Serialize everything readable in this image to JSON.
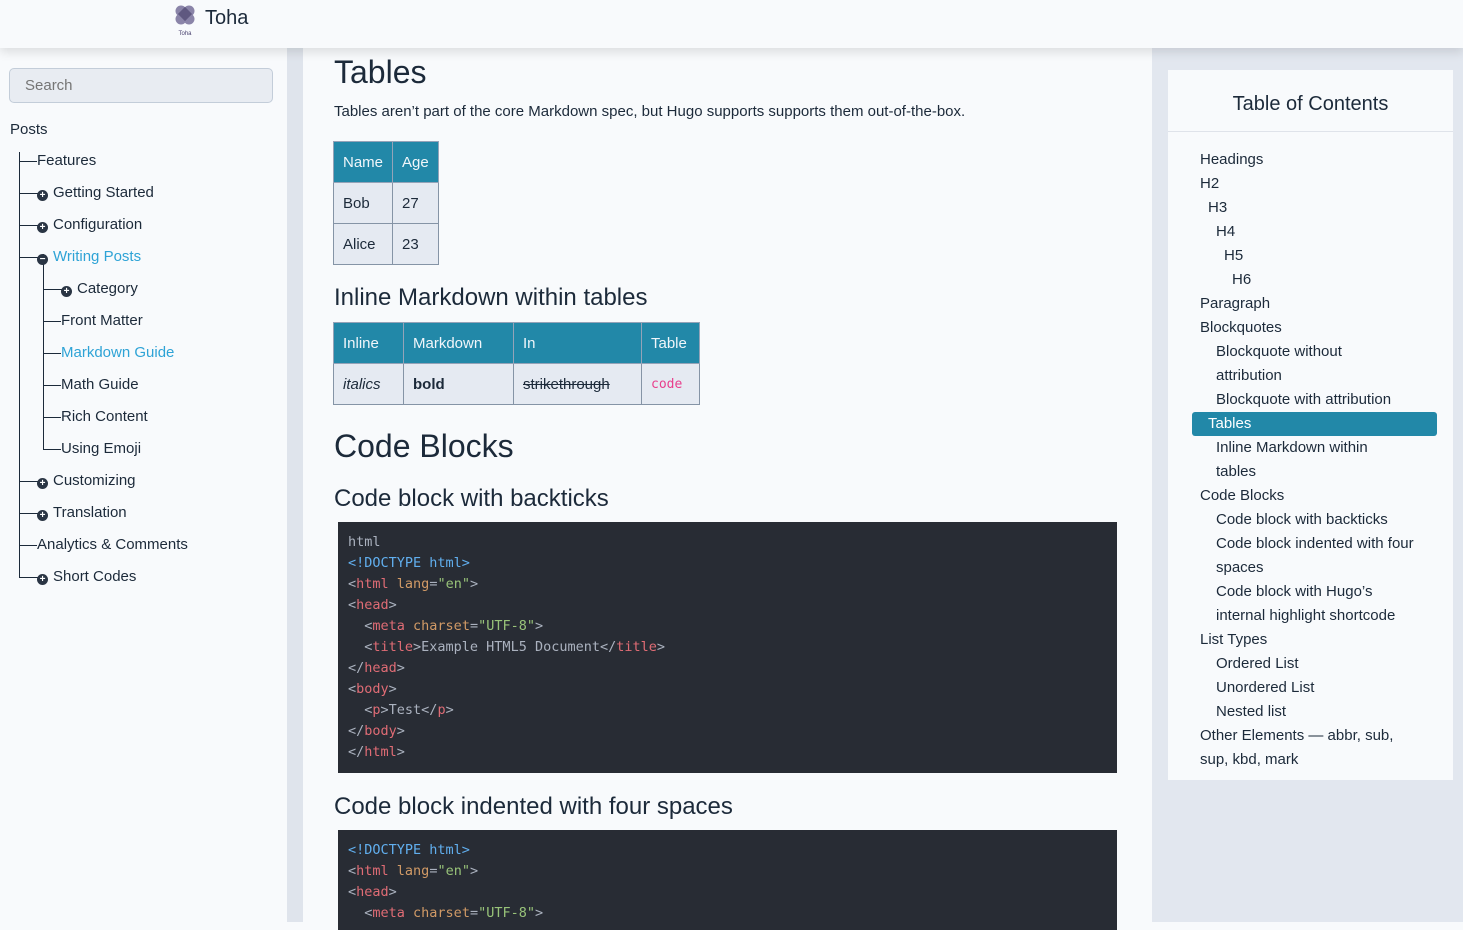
{
  "header": {
    "brand": "Toha",
    "logo_text": "Toha"
  },
  "sidebar": {
    "search_placeholder": "Search",
    "root": "Posts",
    "items": [
      {
        "label": "Features",
        "level": 1,
        "icon": "none"
      },
      {
        "label": "Getting Started",
        "level": 1,
        "icon": "plus"
      },
      {
        "label": "Configuration",
        "level": 1,
        "icon": "plus"
      },
      {
        "label": "Writing Posts",
        "level": 1,
        "icon": "minus",
        "active": true
      },
      {
        "label": "Category",
        "level": 2,
        "icon": "plus"
      },
      {
        "label": "Front Matter",
        "level": 2,
        "icon": "none"
      },
      {
        "label": "Markdown Guide",
        "level": 2,
        "icon": "none",
        "active": true
      },
      {
        "label": "Math Guide",
        "level": 2,
        "icon": "none"
      },
      {
        "label": "Rich Content",
        "level": 2,
        "icon": "none"
      },
      {
        "label": "Using Emoji",
        "level": 2,
        "icon": "none"
      },
      {
        "label": "Customizing",
        "level": 1,
        "icon": "plus"
      },
      {
        "label": "Translation",
        "level": 1,
        "icon": "plus"
      },
      {
        "label": "Analytics & Comments",
        "level": 1,
        "icon": "none"
      },
      {
        "label": "Short Codes",
        "level": 1,
        "icon": "plus"
      }
    ]
  },
  "main": {
    "tables_heading": "Tables",
    "tables_text": "Tables aren’t part of the core Markdown spec, but Hugo supports supports them out-of-the-box.",
    "table1": {
      "headers": [
        "Name",
        "Age"
      ],
      "rows": [
        [
          "Bob",
          "27"
        ],
        [
          "Alice",
          "23"
        ]
      ]
    },
    "inline_heading": "Inline Markdown within tables",
    "table2": {
      "headers": [
        "Inline",
        "Markdown",
        "In",
        "Table"
      ],
      "row": [
        "italics",
        "bold",
        "strikethrough",
        "code"
      ]
    },
    "code_heading": "Code Blocks",
    "backticks_heading": "Code block with backticks",
    "code1": [
      [
        [
          "p",
          "html"
        ]
      ],
      [
        [
          "k",
          "<!DOCTYPE html>"
        ]
      ],
      [
        [
          "p",
          "<"
        ],
        [
          "t",
          "html"
        ],
        [
          "p",
          " "
        ],
        [
          "a",
          "lang"
        ],
        [
          "p",
          "="
        ],
        [
          "s",
          "\"en\""
        ],
        [
          "p",
          ">"
        ]
      ],
      [
        [
          "p",
          "<"
        ],
        [
          "t",
          "head"
        ],
        [
          "p",
          ">"
        ]
      ],
      [
        [
          "p",
          "  <"
        ],
        [
          "t",
          "meta"
        ],
        [
          "p",
          " "
        ],
        [
          "a",
          "charset"
        ],
        [
          "p",
          "="
        ],
        [
          "s",
          "\"UTF-8\""
        ],
        [
          "p",
          ">"
        ]
      ],
      [
        [
          "p",
          "  <"
        ],
        [
          "t",
          "title"
        ],
        [
          "p",
          ">Example HTML5 Document</"
        ],
        [
          "t",
          "title"
        ],
        [
          "p",
          ">"
        ]
      ],
      [
        [
          "p",
          "</"
        ],
        [
          "t",
          "head"
        ],
        [
          "p",
          ">"
        ]
      ],
      [
        [
          "p",
          "<"
        ],
        [
          "t",
          "body"
        ],
        [
          "p",
          ">"
        ]
      ],
      [
        [
          "p",
          "  <"
        ],
        [
          "t",
          "p"
        ],
        [
          "p",
          ">Test</"
        ],
        [
          "t",
          "p"
        ],
        [
          "p",
          ">"
        ]
      ],
      [
        [
          "p",
          "</"
        ],
        [
          "t",
          "body"
        ],
        [
          "p",
          ">"
        ]
      ],
      [
        [
          "p",
          "</"
        ],
        [
          "t",
          "html"
        ],
        [
          "p",
          ">"
        ]
      ]
    ],
    "indented_heading": "Code block indented with four spaces",
    "code2": [
      [
        [
          "k",
          "<!DOCTYPE html>"
        ]
      ],
      [
        [
          "p",
          "<"
        ],
        [
          "t",
          "html"
        ],
        [
          "p",
          " "
        ],
        [
          "a",
          "lang"
        ],
        [
          "p",
          "="
        ],
        [
          "s",
          "\"en\""
        ],
        [
          "p",
          ">"
        ]
      ],
      [
        [
          "p",
          "<"
        ],
        [
          "t",
          "head"
        ],
        [
          "p",
          ">"
        ]
      ],
      [
        [
          "p",
          "  <"
        ],
        [
          "t",
          "meta"
        ],
        [
          "p",
          " "
        ],
        [
          "a",
          "charset"
        ],
        [
          "p",
          "="
        ],
        [
          "s",
          "\"UTF-8\""
        ],
        [
          "p",
          ">"
        ]
      ]
    ]
  },
  "toc": {
    "title": "Table of Contents",
    "items": [
      {
        "label": "Headings",
        "indent": 0
      },
      {
        "label": "H2",
        "indent": 0
      },
      {
        "label": "H3",
        "indent": 1
      },
      {
        "label": "H4",
        "indent": 2
      },
      {
        "label": "H5",
        "indent": 3
      },
      {
        "label": "H6",
        "indent": 4
      },
      {
        "label": "Paragraph",
        "indent": 0
      },
      {
        "label": "Blockquotes",
        "indent": 0
      },
      {
        "label": "Blockquote without",
        "indent": 2
      },
      {
        "label": "attribution",
        "indent": 2
      },
      {
        "label": "Blockquote with attribution",
        "indent": 2
      },
      {
        "label": "Tables",
        "indent": 1,
        "active": true
      },
      {
        "label": "Inline Markdown within",
        "indent": 2
      },
      {
        "label": "tables",
        "indent": 2
      },
      {
        "label": "Code Blocks",
        "indent": 0
      },
      {
        "label": "Code block with backticks",
        "indent": 2
      },
      {
        "label": "Code block indented with four",
        "indent": 2
      },
      {
        "label": "spaces",
        "indent": 2
      },
      {
        "label": "Code block with Hugo’s",
        "indent": 2
      },
      {
        "label": "internal highlight shortcode",
        "indent": 2
      },
      {
        "label": "List Types",
        "indent": 0
      },
      {
        "label": "Ordered List",
        "indent": 2
      },
      {
        "label": "Unordered List",
        "indent": 2
      },
      {
        "label": "Nested list",
        "indent": 2
      },
      {
        "label": "Other Elements — abbr, sub,",
        "indent": 0
      },
      {
        "label": "sup, kbd, mark",
        "indent": 0
      }
    ]
  },
  "colors": {
    "accent": "#2288a8",
    "link_active": "#2ea3d6",
    "code_bg": "#282c34",
    "inline_code": "#e83e8c"
  }
}
